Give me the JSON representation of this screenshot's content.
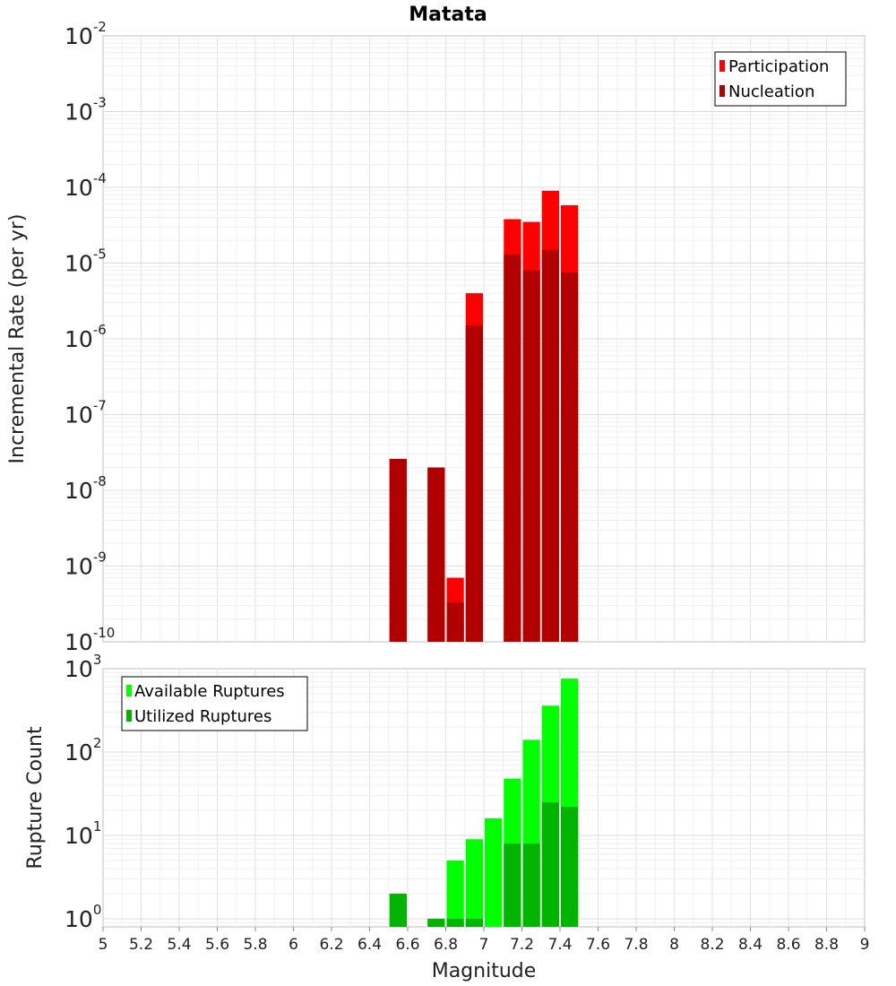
{
  "chart_data": [
    {
      "type": "bar",
      "title": "Matata",
      "xlabel": "",
      "ylabel": "Incremental Rate (per yr)",
      "yscale": "log",
      "ylim": [
        1e-10,
        0.01
      ],
      "xlim": [
        5,
        9
      ],
      "bar_width": 0.1,
      "grid": true,
      "legend_position": "top-right",
      "y_tick_labels": [
        {
          "value": 1e-10,
          "base": "10",
          "exp": "-10"
        },
        {
          "value": 1e-09,
          "base": "10",
          "exp": "-9"
        },
        {
          "value": 1e-08,
          "base": "10",
          "exp": "-8"
        },
        {
          "value": 1e-07,
          "base": "10",
          "exp": "-7"
        },
        {
          "value": 1e-06,
          "base": "10",
          "exp": "-6"
        },
        {
          "value": 1e-05,
          "base": "10",
          "exp": "-5"
        },
        {
          "value": 0.0001,
          "base": "10",
          "exp": "-4"
        },
        {
          "value": 0.001,
          "base": "10",
          "exp": "-3"
        },
        {
          "value": 0.01,
          "base": "10",
          "exp": "-2"
        }
      ],
      "series": [
        {
          "name": "Participation",
          "color": "#ff0000",
          "x": [
            6.55,
            6.75,
            6.85,
            6.95,
            7.15,
            7.25,
            7.35,
            7.45
          ],
          "values": [
            2.6e-08,
            2e-08,
            7e-10,
            4e-06,
            3.8e-05,
            3.5e-05,
            9e-05,
            5.8e-05
          ]
        },
        {
          "name": "Nucleation",
          "color": "#b00000",
          "x": [
            6.55,
            6.75,
            6.85,
            6.95,
            7.15,
            7.25,
            7.35,
            7.45
          ],
          "values": [
            2.6e-08,
            2e-08,
            3.3e-10,
            1.5e-06,
            1.3e-05,
            8e-06,
            1.5e-05,
            7.5e-06
          ]
        }
      ]
    },
    {
      "type": "bar",
      "title": "",
      "xlabel": "Magnitude",
      "ylabel": "Rupture Count",
      "yscale": "log",
      "ylim": [
        0.8,
        1000
      ],
      "xlim": [
        5,
        9
      ],
      "bar_width": 0.1,
      "grid": true,
      "legend_position": "top-left",
      "y_tick_labels": [
        {
          "value": 1,
          "base": "10",
          "exp": "0"
        },
        {
          "value": 10,
          "base": "10",
          "exp": "1"
        },
        {
          "value": 100,
          "base": "10",
          "exp": "2"
        },
        {
          "value": 1000,
          "base": "10",
          "exp": "3"
        }
      ],
      "x_tick_labels": [
        "5",
        "5.2",
        "5.4",
        "5.6",
        "5.8",
        "6",
        "6.2",
        "6.4",
        "6.6",
        "6.8",
        "7",
        "7.2",
        "7.4",
        "7.6",
        "7.8",
        "8",
        "8.2",
        "8.4",
        "8.6",
        "8.8",
        "9"
      ],
      "series": [
        {
          "name": "Available Ruptures",
          "color": "#00ff00",
          "x": [
            6.55,
            6.75,
            6.85,
            6.95,
            7.05,
            7.15,
            7.25,
            7.35,
            7.45
          ],
          "values": [
            2,
            1,
            5,
            9,
            16,
            48,
            140,
            360,
            760
          ]
        },
        {
          "name": "Utilized Ruptures",
          "color": "#00b400",
          "x": [
            6.55,
            6.75,
            6.85,
            6.95,
            7.15,
            7.25,
            7.35,
            7.45
          ],
          "values": [
            2,
            1,
            1,
            1,
            8,
            8,
            25,
            22
          ]
        }
      ]
    }
  ]
}
